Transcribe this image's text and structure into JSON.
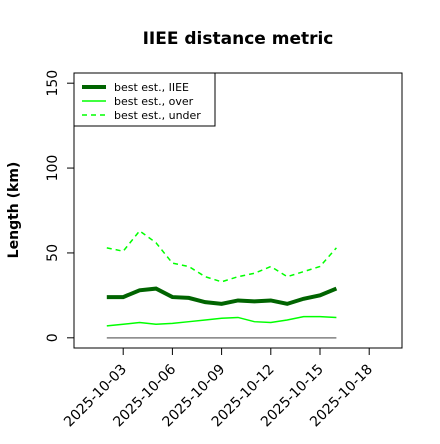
{
  "chart_data": {
    "type": "line",
    "title": "IIEE distance metric",
    "ylabel": "Length (km)",
    "x": [
      "2025-10-02",
      "2025-10-03",
      "2025-10-04",
      "2025-10-05",
      "2025-10-06",
      "2025-10-07",
      "2025-10-08",
      "2025-10-09",
      "2025-10-10",
      "2025-10-11",
      "2025-10-12",
      "2025-10-13",
      "2025-10-14",
      "2025-10-15",
      "2025-10-16"
    ],
    "series": [
      {
        "name": "best est., IIEE",
        "color": "#006400",
        "width": 4,
        "dash": false,
        "values": [
          24,
          24,
          28,
          29,
          24,
          23.5,
          21,
          20,
          22,
          21.5,
          22,
          20,
          23,
          25,
          29
        ]
      },
      {
        "name": "best est., over",
        "color": "#00ff00",
        "width": 1.5,
        "dash": false,
        "values": [
          7,
          8,
          9,
          8,
          8.5,
          9.5,
          10.5,
          11.5,
          12,
          9.5,
          9,
          10.5,
          12.5,
          12.5,
          12
        ]
      },
      {
        "name": "best est., under",
        "color": "#00ff00",
        "width": 1.5,
        "dash": true,
        "values": [
          53,
          51,
          63,
          56,
          44,
          42,
          36,
          33,
          36,
          38,
          42,
          36,
          39,
          42,
          53
        ]
      }
    ],
    "reference_line": {
      "value": 0,
      "color": "#808080"
    },
    "xlim": [
      "2025-09-30",
      "2025-10-20"
    ],
    "xticks": [
      "2025-10-03",
      "2025-10-06",
      "2025-10-09",
      "2025-10-12",
      "2025-10-15",
      "2025-10-18"
    ],
    "ylim": [
      -6,
      156
    ],
    "yticks": [
      0,
      50,
      100,
      150
    ],
    "legend": "top-left",
    "grid": false
  }
}
